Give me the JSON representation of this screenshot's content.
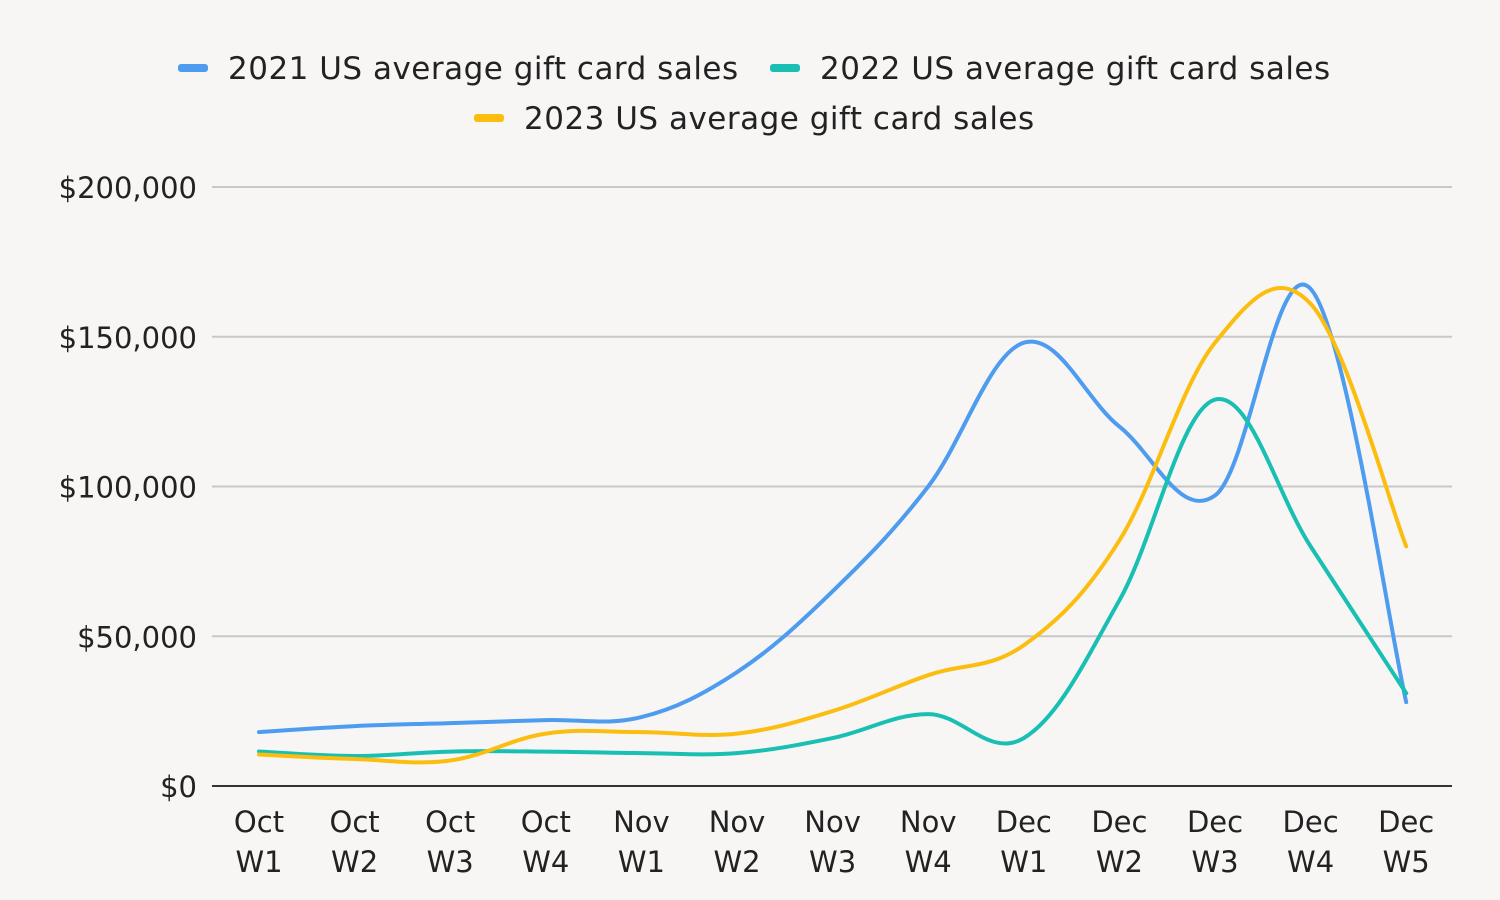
{
  "chart_data": {
    "type": "line",
    "title": "",
    "xlabel": "",
    "ylabel": "",
    "ylim": [
      0,
      200000
    ],
    "grid": true,
    "legend_position": "top-center",
    "y_ticks": [
      {
        "value": 0,
        "label": "$0"
      },
      {
        "value": 50000,
        "label": "$50,000"
      },
      {
        "value": 100000,
        "label": "$100,000"
      },
      {
        "value": 150000,
        "label": "$150,000"
      },
      {
        "value": 200000,
        "label": "$200,000"
      }
    ],
    "categories": [
      {
        "line1": "Oct",
        "line2": "W1"
      },
      {
        "line1": "Oct",
        "line2": "W2"
      },
      {
        "line1": "Oct",
        "line2": "W3"
      },
      {
        "line1": "Oct",
        "line2": "W4"
      },
      {
        "line1": "Nov",
        "line2": "W1"
      },
      {
        "line1": "Nov",
        "line2": "W2"
      },
      {
        "line1": "Nov",
        "line2": "W3"
      },
      {
        "line1": "Nov",
        "line2": "W4"
      },
      {
        "line1": "Dec",
        "line2": "W1"
      },
      {
        "line1": "Dec",
        "line2": "W2"
      },
      {
        "line1": "Dec",
        "line2": "W3"
      },
      {
        "line1": "Dec",
        "line2": "W4"
      },
      {
        "line1": "Dec",
        "line2": "W5"
      }
    ],
    "series": [
      {
        "name": "2021 US average gift card sales",
        "color": "#4e9cf0",
        "values": [
          18000,
          20000,
          21000,
          22000,
          23000,
          38000,
          65000,
          100000,
          148000,
          120000,
          97000,
          166000,
          28000
        ]
      },
      {
        "name": "2022 US average gift card sales",
        "color": "#18bfb2",
        "values": [
          11500,
          10000,
          11500,
          11500,
          11000,
          11000,
          16000,
          24000,
          16000,
          62000,
          129000,
          80000,
          31000
        ]
      },
      {
        "name": "2023 US average gift card sales",
        "color": "#fbbe10",
        "values": [
          10500,
          9000,
          8500,
          17500,
          18000,
          17500,
          25000,
          37000,
          47000,
          82000,
          148000,
          161000,
          80000
        ]
      }
    ]
  }
}
